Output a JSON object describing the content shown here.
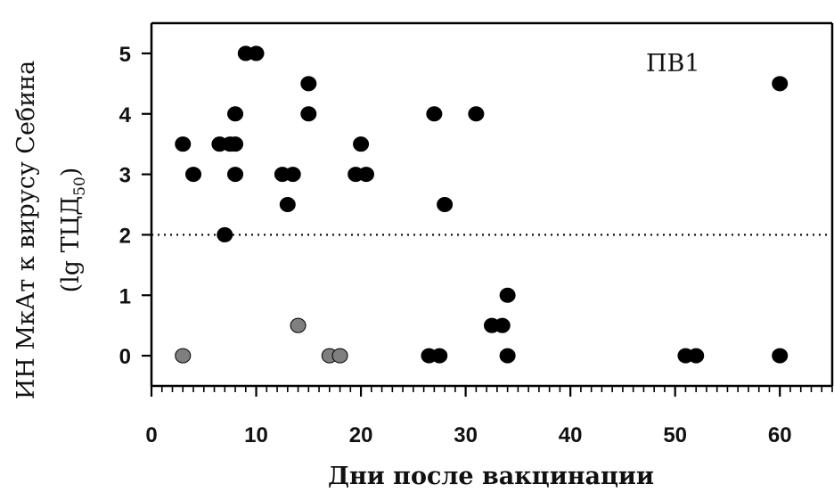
{
  "chart_data": {
    "type": "scatter",
    "title": "",
    "annotation": "ПВ1",
    "xlabel": "Дни после вакцинации",
    "ylabel_main": "ИН МкАт к вирусу Себина",
    "ylabel_sub_open": "(lg ТЦД",
    "ylabel_sub_subscript": "50",
    "ylabel_sub_close": ")",
    "xlim": [
      0,
      65
    ],
    "ylim": [
      -0.5,
      5.5
    ],
    "x_ticks": [
      0,
      10,
      20,
      30,
      40,
      50,
      60
    ],
    "y_ticks": [
      0,
      1,
      2,
      3,
      4,
      5
    ],
    "x_minor_step": 1,
    "threshold_line": {
      "y": 2,
      "style": "dotted"
    },
    "grid": false,
    "colors": {
      "black_point": "#000000",
      "gray_point": "#7f7f7f",
      "axis": "#000000"
    },
    "series": [
      {
        "color": "#000000",
        "points": [
          [
            3,
            3.5
          ],
          [
            4,
            3
          ],
          [
            6.5,
            3.5
          ],
          [
            7,
            2
          ],
          [
            7.5,
            3.5
          ],
          [
            8,
            3.5
          ],
          [
            8,
            4
          ],
          [
            8,
            3
          ],
          [
            9,
            5
          ],
          [
            10,
            5
          ],
          [
            12.5,
            3
          ],
          [
            13,
            2.5
          ],
          [
            13.5,
            3
          ],
          [
            15,
            4.5
          ],
          [
            15,
            4
          ],
          [
            19.5,
            3
          ],
          [
            20,
            3.5
          ],
          [
            20.5,
            3
          ],
          [
            27,
            4
          ],
          [
            31,
            4
          ],
          [
            28,
            2.5
          ],
          [
            26.5,
            0
          ],
          [
            27.5,
            0
          ],
          [
            32.5,
            0.5
          ],
          [
            33.5,
            0.5
          ],
          [
            34,
            1
          ],
          [
            34,
            0
          ],
          [
            51,
            0
          ],
          [
            52,
            0
          ],
          [
            60,
            4.5
          ],
          [
            60,
            0
          ]
        ]
      },
      {
        "color": "#7f7f7f",
        "points": [
          [
            3,
            0
          ],
          [
            14,
            0.5
          ],
          [
            17,
            0
          ],
          [
            18,
            0
          ]
        ]
      }
    ]
  }
}
